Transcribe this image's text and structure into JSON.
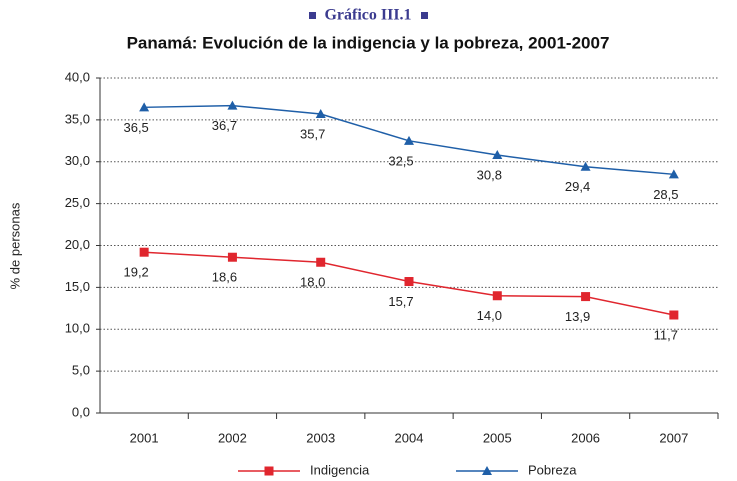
{
  "chart_data": {
    "type": "line",
    "supertitle": "Gráfico III.1",
    "title": "Panamá: Evolución de la indigencia y la  pobreza, 2001-2007",
    "ylabel": "% de personas",
    "categories": [
      "2001",
      "2002",
      "2003",
      "2004",
      "2005",
      "2006",
      "2007"
    ],
    "series": [
      {
        "name": "Indigencia",
        "color": "#e0262e",
        "marker": "square",
        "values": [
          19.2,
          18.6,
          18.0,
          15.7,
          14.0,
          13.9,
          11.7
        ],
        "value_labels": [
          "19,2",
          "18,6",
          "18,0",
          "15,7",
          "14,0",
          "13,9",
          "11,7"
        ]
      },
      {
        "name": "Pobreza",
        "color": "#1f5fa8",
        "marker": "triangle",
        "values": [
          36.5,
          36.7,
          35.7,
          32.5,
          30.8,
          29.4,
          28.5
        ],
        "value_labels": [
          "36,5",
          "36,7",
          "35,7",
          "32,5",
          "30,8",
          "29,4",
          "28,5"
        ]
      }
    ],
    "ylim": [
      0,
      40
    ],
    "yticks": [
      {
        "value": 0,
        "label": "0,0"
      },
      {
        "value": 5,
        "label": "5,0"
      },
      {
        "value": 10,
        "label": "10,0"
      },
      {
        "value": 15,
        "label": "15,0"
      },
      {
        "value": 20,
        "label": "20,0"
      },
      {
        "value": 25,
        "label": "25,0"
      },
      {
        "value": 30,
        "label": "30,0"
      },
      {
        "value": 35,
        "label": "35,0"
      },
      {
        "value": 40,
        "label": "40,0"
      }
    ],
    "grid": true,
    "legend": "bottom"
  }
}
